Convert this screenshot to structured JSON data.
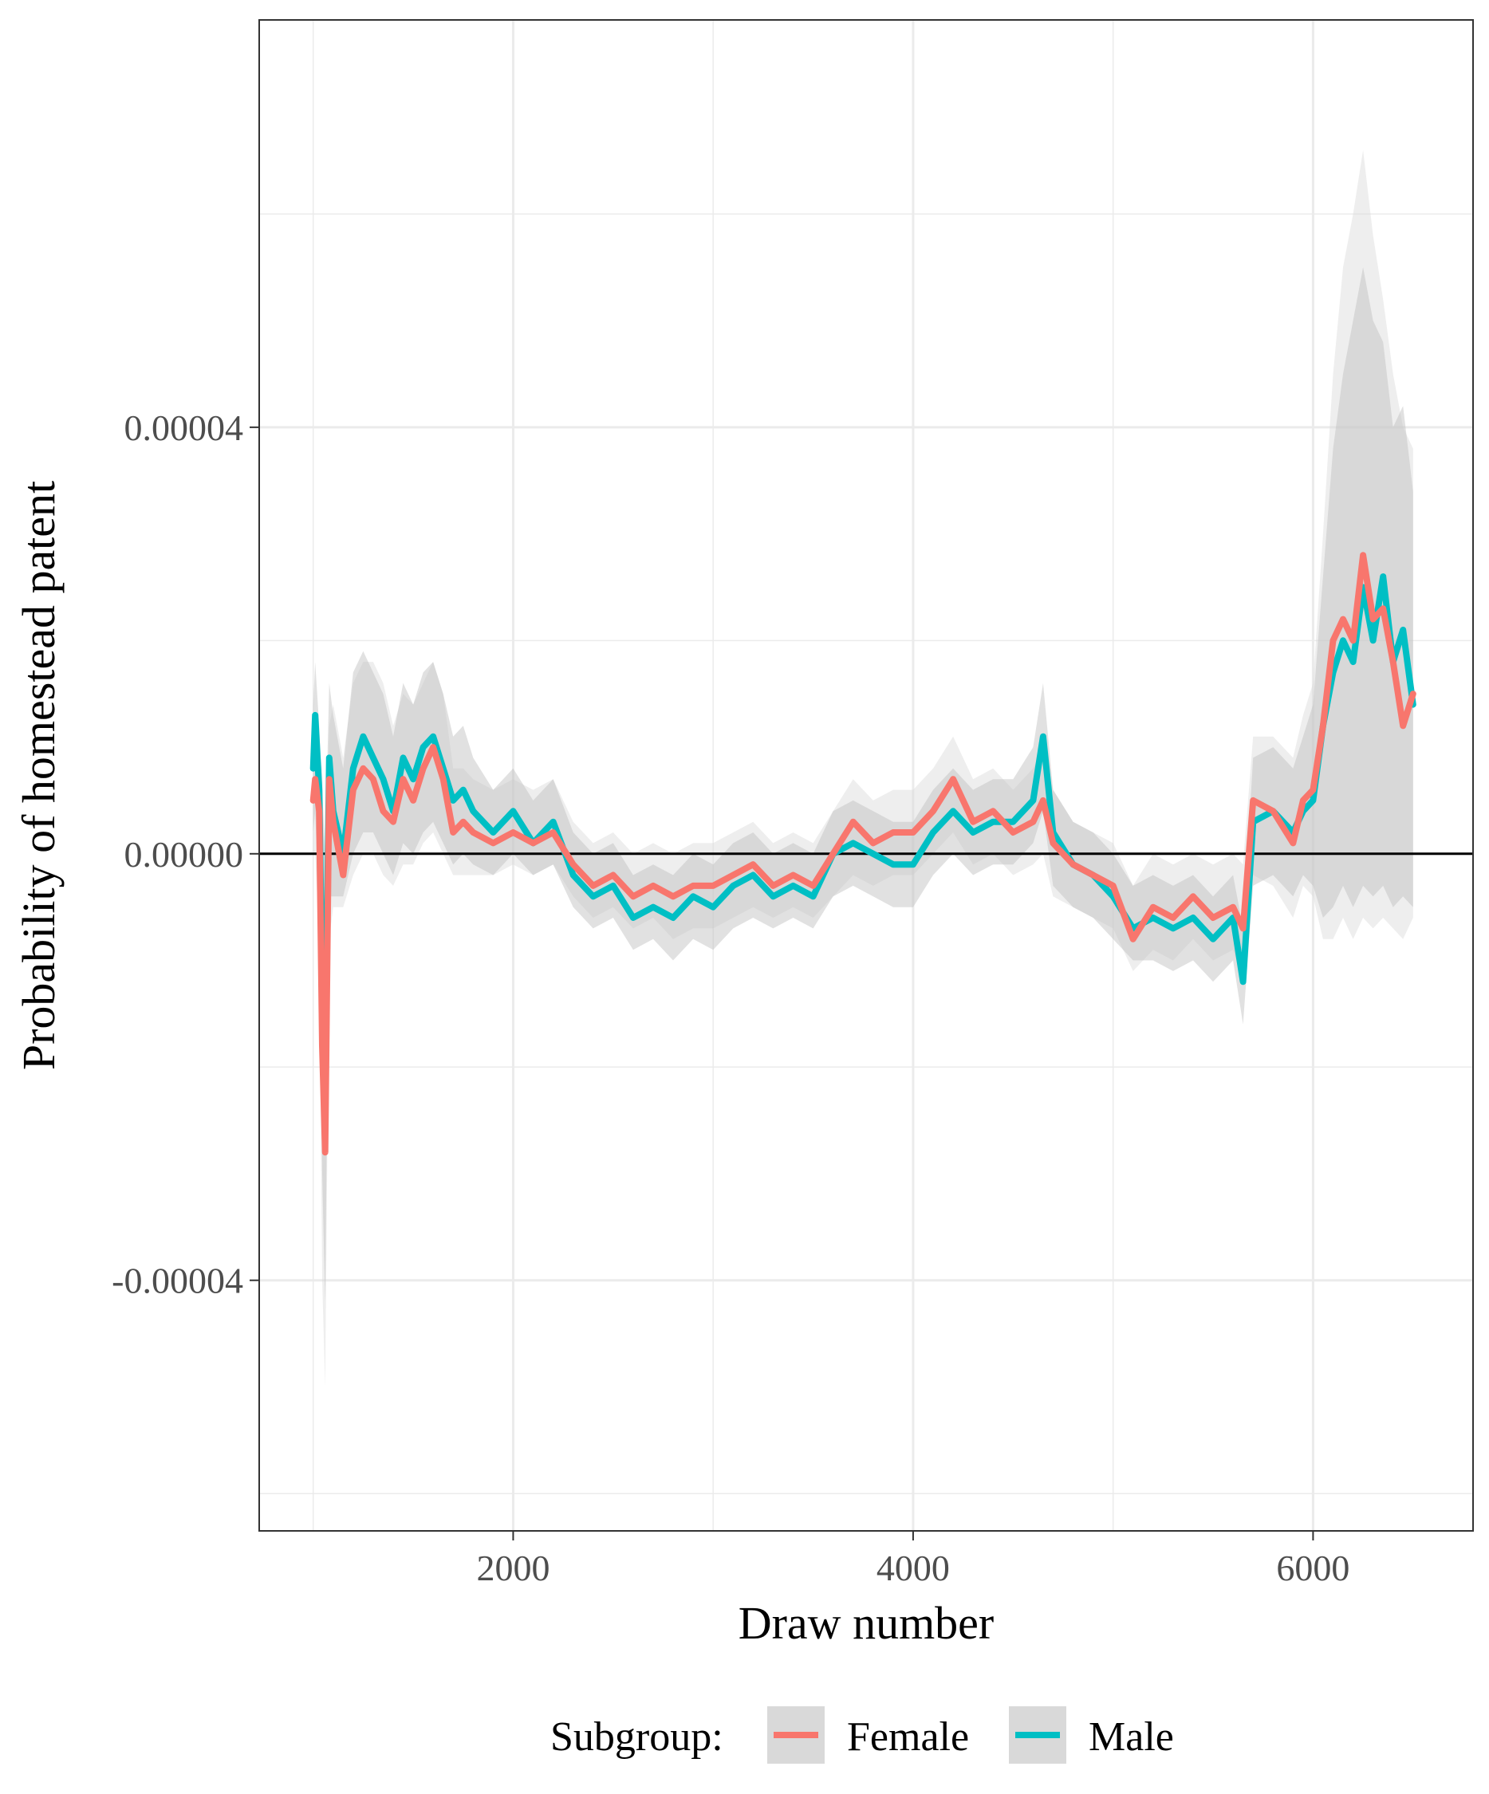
{
  "chart_data": {
    "type": "line",
    "xlabel": "Draw number",
    "ylabel": "Probability of homestead patent",
    "xlim": [
      730,
      6800
    ],
    "ylim": [
      -6.35e-05,
      7.82e-05
    ],
    "x_ticks": [
      2000,
      4000,
      6000
    ],
    "x_tick_labels": [
      "2000",
      "4000",
      "6000"
    ],
    "y_ticks": [
      -4e-05,
      0.0,
      4e-05
    ],
    "y_tick_labels": [
      "-0.00004",
      "0.00000",
      "0.00004"
    ],
    "reference_line_y": 0.0,
    "grid": true,
    "legend": {
      "title": "Subgroup:",
      "position": "bottom",
      "entries": [
        "Female",
        "Male"
      ]
    },
    "colors": {
      "Female": "#F8766D",
      "Male": "#00BFC4",
      "band": "#bdbdbd",
      "band_outer": "#d9d9d9",
      "grid": "#ebebeb",
      "panel_border": "#333333",
      "legend_key_bg": "#d9d9d9"
    },
    "x": [
      1000,
      1010,
      1030,
      1045,
      1060,
      1080,
      1100,
      1150,
      1200,
      1250,
      1300,
      1350,
      1400,
      1450,
      1500,
      1550,
      1600,
      1650,
      1700,
      1750,
      1800,
      1900,
      2000,
      2100,
      2200,
      2300,
      2400,
      2500,
      2600,
      2700,
      2800,
      2900,
      3000,
      3100,
      3200,
      3300,
      3400,
      3500,
      3600,
      3700,
      3800,
      3900,
      4000,
      4100,
      4200,
      4300,
      4400,
      4500,
      4600,
      4650,
      4700,
      4800,
      4900,
      5000,
      5100,
      5200,
      5300,
      5400,
      5500,
      5600,
      5650,
      5700,
      5800,
      5900,
      5950,
      6000,
      6050,
      6100,
      6150,
      6200,
      6250,
      6300,
      6350,
      6400,
      6450,
      6500
    ],
    "series": [
      {
        "name": "Female",
        "values": [
          5e-06,
          7e-06,
          4e-06,
          -1.8e-05,
          -2.8e-05,
          7e-06,
          3e-06,
          -2e-06,
          6e-06,
          8e-06,
          7e-06,
          4e-06,
          3e-06,
          7e-06,
          5e-06,
          8e-06,
          1e-05,
          7e-06,
          2e-06,
          3e-06,
          2e-06,
          1e-06,
          2e-06,
          1e-06,
          2e-06,
          -1e-06,
          -3e-06,
          -2e-06,
          -4e-06,
          -3e-06,
          -4e-06,
          -3e-06,
          -3e-06,
          -2e-06,
          -1e-06,
          -3e-06,
          -2e-06,
          -3e-06,
          0.0,
          3e-06,
          1e-06,
          2e-06,
          2e-06,
          4e-06,
          7e-06,
          3e-06,
          4e-06,
          2e-06,
          3e-06,
          5e-06,
          1e-06,
          -1e-06,
          -2e-06,
          -3e-06,
          -8e-06,
          -5e-06,
          -6e-06,
          -4e-06,
          -6e-06,
          -5e-06,
          -7e-06,
          5e-06,
          4e-06,
          1e-06,
          5e-06,
          6e-06,
          1.2e-05,
          2e-05,
          2.2e-05,
          2e-05,
          2.8e-05,
          2.2e-05,
          2.3e-05,
          1.8e-05,
          1.2e-05,
          1.5e-05
        ],
        "band_lower": [
          0.0,
          0.0,
          -8e-06,
          -4e-05,
          -5e-05,
          -8e-06,
          -5e-06,
          -5e-06,
          -2e-06,
          0.0,
          0.0,
          -2e-06,
          -3e-06,
          -1e-06,
          -1e-06,
          1e-06,
          2e-06,
          0.0,
          -2e-06,
          -2e-06,
          -2e-06,
          -2e-06,
          -1e-06,
          -2e-06,
          -1e-06,
          -4e-06,
          -6e-06,
          -5e-06,
          -7e-06,
          -6e-06,
          -8e-06,
          -7e-06,
          -7e-06,
          -6e-06,
          -5e-06,
          -6e-06,
          -5e-06,
          -6e-06,
          -4e-06,
          -2e-06,
          -3e-06,
          -2e-06,
          -2e-06,
          0.0,
          2e-06,
          -1e-06,
          0.0,
          -2e-06,
          -1e-06,
          0.0,
          -4e-06,
          -5e-06,
          -6e-06,
          -7e-06,
          -1.1e-05,
          -9e-06,
          -1e-05,
          -8e-06,
          -1e-05,
          -9e-06,
          -1.2e-05,
          -2e-06,
          -3e-06,
          -6e-06,
          -3e-06,
          -4e-06,
          -8e-06,
          -8e-06,
          -6e-06,
          -8e-06,
          -6e-06,
          -7e-06,
          -6e-06,
          -7e-06,
          -8e-06,
          -6e-06
        ],
        "band_upper": [
          1.2e-05,
          1.2e-05,
          1e-05,
          8e-06,
          -5e-06,
          1.2e-05,
          1.4e-05,
          9e-06,
          1.6e-05,
          1.8e-05,
          1.8e-05,
          1.6e-05,
          1.2e-05,
          1.5e-05,
          1.4e-05,
          1.6e-05,
          1.8e-05,
          1.5e-05,
          8e-06,
          8e-06,
          7e-06,
          6e-06,
          7e-06,
          6e-06,
          7e-06,
          3e-06,
          1e-06,
          2e-06,
          0.0,
          1e-06,
          0.0,
          1e-06,
          1e-06,
          2e-06,
          3e-06,
          1e-06,
          2e-06,
          1e-06,
          4e-06,
          7e-06,
          5e-06,
          6e-06,
          6e-06,
          8e-06,
          1.1e-05,
          7e-06,
          8e-06,
          6e-06,
          8e-06,
          1e-05,
          6e-06,
          3e-06,
          2e-06,
          1e-06,
          -3e-06,
          0.0,
          -1e-06,
          0.0,
          -1e-06,
          0.0,
          -1e-06,
          1.1e-05,
          1.1e-05,
          9e-06,
          1.3e-05,
          1.6e-05,
          3e-05,
          4.5e-05,
          5.5e-05,
          6e-05,
          6.6e-05,
          5.8e-05,
          5.2e-05,
          4.5e-05,
          4e-05,
          3.8e-05
        ]
      },
      {
        "name": "Male",
        "values": [
          8e-06,
          1.3e-05,
          6e-06,
          -1.2e-05,
          -2e-05,
          9e-06,
          4e-06,
          0.0,
          8e-06,
          1.1e-05,
          9e-06,
          7e-06,
          4e-06,
          9e-06,
          7e-06,
          1e-05,
          1.1e-05,
          8e-06,
          5e-06,
          6e-06,
          4e-06,
          2e-06,
          4e-06,
          1e-06,
          3e-06,
          -2e-06,
          -4e-06,
          -3e-06,
          -6e-06,
          -5e-06,
          -6e-06,
          -4e-06,
          -5e-06,
          -3e-06,
          -2e-06,
          -4e-06,
          -3e-06,
          -4e-06,
          0.0,
          1e-06,
          0.0,
          -1e-06,
          -1e-06,
          2e-06,
          4e-06,
          2e-06,
          3e-06,
          3e-06,
          5e-06,
          1.1e-05,
          2e-06,
          -1e-06,
          -2e-06,
          -4e-06,
          -7e-06,
          -6e-06,
          -7e-06,
          -6e-06,
          -8e-06,
          -6e-06,
          -1.2e-05,
          3e-06,
          4e-06,
          2e-06,
          4e-06,
          5e-06,
          1.2e-05,
          1.7e-05,
          2e-05,
          1.8e-05,
          2.5e-05,
          2e-05,
          2.6e-05,
          1.8e-05,
          2.1e-05,
          1.4e-05
        ],
        "band_lower": [
          2e-06,
          4e-06,
          -6e-06,
          -3e-05,
          -4.2e-05,
          -4e-06,
          -4e-06,
          -4e-06,
          0.0,
          2e-06,
          2e-06,
          0.0,
          -2e-06,
          1e-06,
          0.0,
          2e-06,
          3e-06,
          1e-06,
          -1e-06,
          0.0,
          -1e-06,
          -2e-06,
          0.0,
          -2e-06,
          -1e-06,
          -5e-06,
          -7e-06,
          -6e-06,
          -9e-06,
          -8e-06,
          -1e-05,
          -8e-06,
          -9e-06,
          -7e-06,
          -6e-06,
          -7e-06,
          -6e-06,
          -7e-06,
          -4e-06,
          -3e-06,
          -4e-06,
          -5e-06,
          -5e-06,
          -2e-06,
          0.0,
          -2e-06,
          -1e-06,
          -1e-06,
          1e-06,
          4e-06,
          -3e-06,
          -5e-06,
          -6e-06,
          -8e-06,
          -1e-05,
          -1e-05,
          -1.1e-05,
          -1e-05,
          -1.2e-05,
          -1e-05,
          -1.6e-05,
          -3e-06,
          -2e-06,
          -4e-06,
          -2e-06,
          -3e-06,
          -6e-06,
          -5e-06,
          -3e-06,
          -5e-06,
          -3e-06,
          -4e-06,
          -3e-06,
          -5e-06,
          -4e-06,
          -5e-06
        ],
        "band_upper": [
          1.4e-05,
          1.8e-05,
          1.2e-05,
          6e-06,
          0.0,
          1.6e-05,
          1.3e-05,
          8e-06,
          1.7e-05,
          1.9e-05,
          1.7e-05,
          1.5e-05,
          1.1e-05,
          1.6e-05,
          1.4e-05,
          1.7e-05,
          1.8e-05,
          1.5e-05,
          1.1e-05,
          1.2e-05,
          9e-06,
          6e-06,
          8e-06,
          5e-06,
          7e-06,
          2e-06,
          0.0,
          1e-06,
          -2e-06,
          -1e-06,
          -2e-06,
          0.0,
          -1e-06,
          1e-06,
          2e-06,
          0.0,
          1e-06,
          0.0,
          4e-06,
          5e-06,
          4e-06,
          3e-06,
          3e-06,
          6e-06,
          8e-06,
          6e-06,
          7e-06,
          7e-06,
          1e-05,
          1.6e-05,
          6e-06,
          3e-06,
          2e-06,
          0.0,
          -3e-06,
          -2e-06,
          -3e-06,
          -2e-06,
          -4e-06,
          -2e-06,
          -7e-06,
          9e-06,
          1e-05,
          8e-06,
          1.1e-05,
          1.4e-05,
          2.6e-05,
          3.8e-05,
          4.5e-05,
          5e-05,
          5.5e-05,
          5e-05,
          4.8e-05,
          4e-05,
          4.2e-05,
          3.4e-05
        ]
      }
    ]
  }
}
